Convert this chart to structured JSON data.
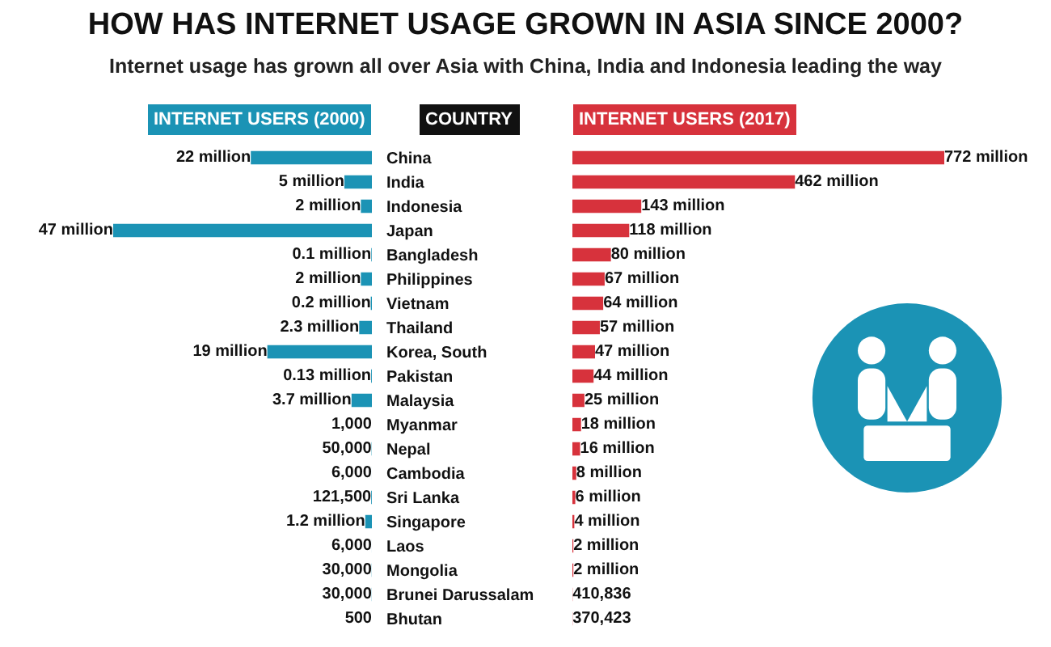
{
  "chart_data": [
    {
      "type": "bar",
      "orientation": "horizontal",
      "title": "HOW HAS INTERNET USAGE GROWN IN ASIA SINCE 2000?",
      "subtitle": "Internet usage has grown all over Asia with China, India and Indonesia leading the way",
      "ylabel": "COUNTRY",
      "legend": "top",
      "categories": [
        "China",
        "India",
        "Indonesia",
        "Japan",
        "Bangladesh",
        "Philippines",
        "Vietnam",
        "Thailand",
        "Korea, South",
        "Pakistan",
        "Malaysia",
        "Myanmar",
        "Nepal",
        "Cambodia",
        "Sri Lanka",
        "Singapore",
        "Laos",
        "Mongolia",
        "Brunei Darussalam",
        "Bhutan"
      ],
      "series": [
        {
          "name": "INTERNET USERS (2000)",
          "color": "#1b93b5",
          "values": [
            22000000,
            5000000,
            2000000,
            47000000,
            100000,
            2000000,
            200000,
            2300000,
            19000000,
            130000,
            3700000,
            1000,
            50000,
            6000,
            121500,
            1200000,
            6000,
            30000,
            30000,
            500
          ],
          "value_labels": [
            "22 million",
            "5 million",
            "2 million",
            "47 million",
            "0.1 million",
            "2 million",
            "0.2 million",
            "2.3 million",
            "19 million",
            "0.13 million",
            "3.7 million",
            "1,000",
            "50,000",
            "6,000",
            "121,500",
            "1.2 million",
            "6,000",
            "30,000",
            "30,000",
            "500"
          ]
        }
      ]
    },
    {
      "type": "bar",
      "orientation": "horizontal",
      "legend": "top",
      "categories": [
        null,
        null,
        null,
        null,
        null,
        null,
        null,
        null,
        null,
        null,
        null,
        null,
        null,
        null,
        null,
        null,
        null,
        null,
        null,
        null
      ],
      "series": [
        {
          "name": "INTERNET USERS (2017)",
          "color": "#d7323c",
          "values": [
            772000000,
            462000000,
            143000000,
            118000000,
            80000000,
            67000000,
            64000000,
            57000000,
            47000000,
            44000000,
            25000000,
            18000000,
            16000000,
            8000000,
            6000000,
            4000000,
            2000000,
            2000000,
            410836,
            370423
          ],
          "value_labels": [
            "772 million",
            "462 million",
            "143 million",
            "118 million",
            "80 million",
            "67 million",
            "64 million",
            "57 million",
            "47 million",
            "44 million",
            "25 million",
            "18 million",
            "16 million",
            "8 million",
            "6 million",
            "4 million",
            "2 million",
            "2 million",
            "410,836",
            "370,423"
          ]
        }
      ]
    }
  ]
}
